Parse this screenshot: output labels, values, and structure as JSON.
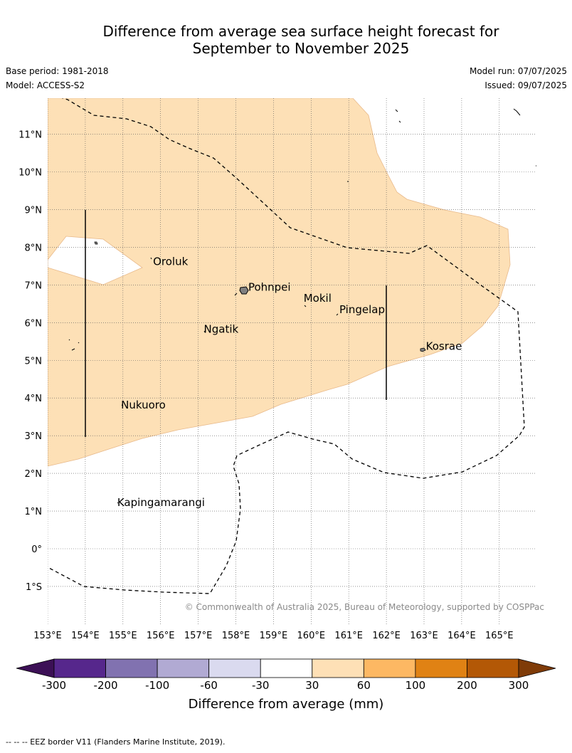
{
  "title_line1": "Difference from average sea surface height forecast for",
  "title_line2": "September to November 2025",
  "base_period": "Base period: 1981-2018",
  "model": "Model: ACCESS-S2",
  "model_run": "Model run: 07/07/2025",
  "issued": "Issued: 09/07/2025",
  "copyright": "© Commonwealth of Australia 2025, Bureau of Meteorology, supported by COSPPac",
  "footer": "--  --  -- EEZ border V11 (Flanders Marine Institute, 2019).",
  "lat_labels": [
    {
      "lat": 11,
      "text": "11°N"
    },
    {
      "lat": 10,
      "text": "10°N"
    },
    {
      "lat": 9,
      "text": "9°N"
    },
    {
      "lat": 8,
      "text": "8°N"
    },
    {
      "lat": 7,
      "text": "7°N"
    },
    {
      "lat": 6,
      "text": "6°N"
    },
    {
      "lat": 5,
      "text": "5°N"
    },
    {
      "lat": 4,
      "text": "4°N"
    },
    {
      "lat": 3,
      "text": "3°N"
    },
    {
      "lat": 2,
      "text": "2°N"
    },
    {
      "lat": 1,
      "text": "1°N"
    },
    {
      "lat": 0,
      "text": "0°"
    },
    {
      "lat": -1,
      "text": "1°S"
    }
  ],
  "lon_labels": [
    {
      "lon": 153,
      "text": "153°E"
    },
    {
      "lon": 154,
      "text": "154°E"
    },
    {
      "lon": 155,
      "text": "155°E"
    },
    {
      "lon": 156,
      "text": "156°E"
    },
    {
      "lon": 157,
      "text": "157°E"
    },
    {
      "lon": 158,
      "text": "158°E"
    },
    {
      "lon": 159,
      "text": "159°E"
    },
    {
      "lon": 160,
      "text": "160°E"
    },
    {
      "lon": 161,
      "text": "161°E"
    },
    {
      "lon": 162,
      "text": "162°E"
    },
    {
      "lon": 163,
      "text": "163°E"
    },
    {
      "lon": 164,
      "text": "164°E"
    },
    {
      "lon": 165,
      "text": "165°E"
    }
  ],
  "places": [
    {
      "name": "Oroluk",
      "lon": 155.8,
      "lat": 7.53
    },
    {
      "name": "Pohnpei",
      "lon": 158.33,
      "lat": 6.85
    },
    {
      "name": "Mokil",
      "lon": 159.8,
      "lat": 6.55
    },
    {
      "name": "Pingelap",
      "lon": 160.75,
      "lat": 6.25
    },
    {
      "name": "Ngatik",
      "lon": 157.15,
      "lat": 5.73
    },
    {
      "name": "Kosrae",
      "lon": 163.05,
      "lat": 5.28
    },
    {
      "name": "Nukuoro",
      "lon": 154.95,
      "lat": 3.72
    },
    {
      "name": "Kapingamarangi",
      "lon": 154.85,
      "lat": 1.13
    }
  ],
  "colorbar": {
    "title": "Difference from average (mm)",
    "ticks": [
      "-300",
      "-200",
      "-100",
      "-60",
      "-30",
      "30",
      "60",
      "100",
      "200",
      "300"
    ],
    "colors": [
      "#3c1056",
      "#56278c",
      "#8172b0",
      "#b1aad3",
      "#dadaef",
      "#ffffff",
      "#fee0b6",
      "#fdb863",
      "#e08214",
      "#b35806",
      "#7f3b08"
    ]
  },
  "colors": {
    "anomaly_fill": "#fde0b6",
    "island": "#808080"
  }
}
